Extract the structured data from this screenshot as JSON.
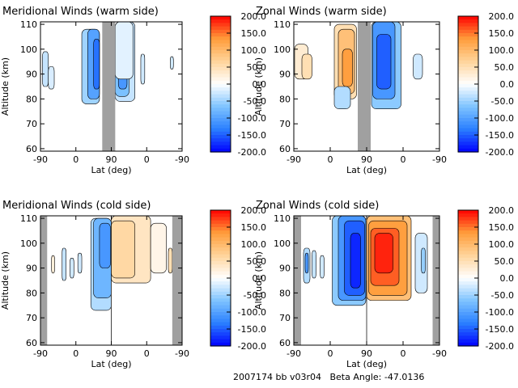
{
  "footer": {
    "run_label": "2007174 bb v03r04",
    "beta_label": "Beta Angle:",
    "beta_value": "-47.0136"
  },
  "colorbar": {
    "ticks": [
      "200.0",
      "150.0",
      "100.0",
      "50.0",
      "0.0",
      "-50.0",
      "-100.0",
      "-150.0",
      "-200.0"
    ],
    "range": [
      -200,
      200
    ],
    "colors": [
      "#0000ff",
      "#2a7fff",
      "#7fc4ff",
      "#ffffff",
      "#ffd49a",
      "#ff9c3a",
      "#ff0000"
    ]
  },
  "chart_data": [
    {
      "type": "heatmap",
      "title": "Meridional Winds (warm side)",
      "xlabel": "Lat (deg)",
      "ylabel": "Altitude (km)",
      "x_ticks": [
        "-90",
        "0",
        "90",
        "0",
        "-90"
      ],
      "y_ticks": [
        "60",
        "70",
        "80",
        "90",
        "100",
        "110"
      ],
      "ylim": [
        59,
        111
      ],
      "x_span": [
        -90,
        270
      ],
      "no_data_band": [
        67,
        100
      ],
      "regions": [
        {
          "x": [
            -85,
            -70
          ],
          "y": [
            85,
            99
          ],
          "value": -30
        },
        {
          "x": [
            -70,
            -55
          ],
          "y": [
            84,
            93
          ],
          "value": -20
        },
        {
          "x": [
            15,
            60
          ],
          "y": [
            78,
            108
          ],
          "value": -50
        },
        {
          "x": [
            30,
            60
          ],
          "y": [
            80,
            108
          ],
          "value": -100
        },
        {
          "x": [
            45,
            60
          ],
          "y": [
            84,
            104
          ],
          "value": -140
        },
        {
          "x": [
            100,
            150
          ],
          "y": [
            79,
            111
          ],
          "value": -30
        },
        {
          "x": [
            100,
            135
          ],
          "y": [
            81,
            103
          ],
          "value": -70
        },
        {
          "x": [
            108,
            130
          ],
          "y": [
            84,
            98
          ],
          "value": -110
        },
        {
          "x": [
            100,
            145
          ],
          "y": [
            88,
            111
          ],
          "value": -15
        },
        {
          "x": [
            165,
            175
          ],
          "y": [
            86,
            98
          ],
          "value": -25
        },
        {
          "x": [
            240,
            248
          ],
          "y": [
            92,
            97
          ],
          "value": -25
        }
      ]
    },
    {
      "type": "heatmap",
      "title": "Zonal Winds (warm side)",
      "xlabel": "Lat (deg)",
      "ylabel": "Altitude (km)",
      "x_ticks": [
        "-90",
        "0",
        "90",
        "0",
        "-90"
      ],
      "y_ticks": [
        "60",
        "70",
        "80",
        "90",
        "100",
        "110"
      ],
      "ylim": [
        59,
        111
      ],
      "x_span": [
        -90,
        270
      ],
      "no_data_band": [
        68,
        100
      ],
      "regions": [
        {
          "x": [
            -88,
            -55
          ],
          "y": [
            88,
            102
          ],
          "value": 30
        },
        {
          "x": [
            -70,
            -45
          ],
          "y": [
            88,
            98
          ],
          "value": 50
        },
        {
          "x": [
            10,
            65
          ],
          "y": [
            80,
            110
          ],
          "value": 50
        },
        {
          "x": [
            20,
            60
          ],
          "y": [
            82,
            108
          ],
          "value": 90
        },
        {
          "x": [
            30,
            55
          ],
          "y": [
            85,
            100
          ],
          "value": 130
        },
        {
          "x": [
            10,
            50
          ],
          "y": [
            76,
            85
          ],
          "value": -40
        },
        {
          "x": [
            102,
            175
          ],
          "y": [
            76,
            111
          ],
          "value": -60
        },
        {
          "x": [
            105,
            160
          ],
          "y": [
            80,
            111
          ],
          "value": -110
        },
        {
          "x": [
            115,
            150
          ],
          "y": [
            84,
            106
          ],
          "value": -150
        },
        {
          "x": [
            205,
            228
          ],
          "y": [
            88,
            98
          ],
          "value": -25
        }
      ]
    },
    {
      "type": "heatmap",
      "title": "Meridional Winds (cold side)",
      "xlabel": "Lat (deg)",
      "ylabel": "Altitude (km)",
      "x_ticks": [
        "-90",
        "0",
        "90",
        "0",
        "-90"
      ],
      "y_ticks": [
        "60",
        "70",
        "80",
        "90",
        "100",
        "110"
      ],
      "ylim": [
        59,
        111
      ],
      "x_span": [
        -90,
        270
      ],
      "no_data_bands": [
        [
          -90,
          -73
        ],
        [
          245,
          270
        ]
      ],
      "regions": [
        {
          "x": [
            -62,
            -54
          ],
          "y": [
            88,
            95
          ],
          "value": 25
        },
        {
          "x": [
            -35,
            -25
          ],
          "y": [
            85,
            98
          ],
          "value": -30
        },
        {
          "x": [
            -15,
            -5
          ],
          "y": [
            86,
            94
          ],
          "value": -25
        },
        {
          "x": [
            5,
            15
          ],
          "y": [
            88,
            96
          ],
          "value": -25
        },
        {
          "x": [
            38,
            90
          ],
          "y": [
            73,
            110
          ],
          "value": -40
        },
        {
          "x": [
            45,
            90
          ],
          "y": [
            78,
            110
          ],
          "value": -80
        },
        {
          "x": [
            60,
            88
          ],
          "y": [
            90,
            108
          ],
          "value": -110
        },
        {
          "x": [
            90,
            190
          ],
          "y": [
            84,
            111
          ],
          "value": 40
        },
        {
          "x": [
            90,
            150
          ],
          "y": [
            86,
            109
          ],
          "value": 60
        },
        {
          "x": [
            190,
            230
          ],
          "y": [
            88,
            108
          ],
          "value": 15
        },
        {
          "x": [
            235,
            245
          ],
          "y": [
            88,
            98
          ],
          "value": 50
        }
      ]
    },
    {
      "type": "heatmap",
      "title": "Zonal Winds (cold side)",
      "xlabel": "Lat (deg)",
      "ylabel": "Altitude (km)",
      "x_ticks": [
        "-90",
        "0",
        "90",
        "0",
        "-90"
      ],
      "y_ticks": [
        "60",
        "70",
        "80",
        "90",
        "100",
        "110"
      ],
      "ylim": [
        59,
        111
      ],
      "x_span": [
        -90,
        270
      ],
      "no_data_bands": [
        [
          -90,
          -72
        ],
        [
          253,
          270
        ]
      ],
      "regions": [
        {
          "x": [
            -66,
            -50
          ],
          "y": [
            84,
            98
          ],
          "value": -40
        },
        {
          "x": [
            -62,
            -54
          ],
          "y": [
            88,
            96
          ],
          "value": -110
        },
        {
          "x": [
            -45,
            -35
          ],
          "y": [
            86,
            97
          ],
          "value": -30
        },
        {
          "x": [
            -25,
            -15
          ],
          "y": [
            86,
            95
          ],
          "value": -25
        },
        {
          "x": [
            5,
            88
          ],
          "y": [
            75,
            111
          ],
          "value": -60
        },
        {
          "x": [
            20,
            88
          ],
          "y": [
            77,
            111
          ],
          "value": -110
        },
        {
          "x": [
            35,
            85
          ],
          "y": [
            79,
            109
          ],
          "value": -150
        },
        {
          "x": [
            50,
            75
          ],
          "y": [
            82,
            104
          ],
          "value": -180
        },
        {
          "x": [
            90,
            200
          ],
          "y": [
            77,
            111
          ],
          "value": 90
        },
        {
          "x": [
            95,
            190
          ],
          "y": [
            79,
            109
          ],
          "value": 130
        },
        {
          "x": [
            100,
            170
          ],
          "y": [
            83,
            106
          ],
          "value": 160
        },
        {
          "x": [
            110,
            155
          ],
          "y": [
            88,
            104
          ],
          "value": 185
        },
        {
          "x": [
            210,
            240
          ],
          "y": [
            80,
            104
          ],
          "value": -25
        },
        {
          "x": [
            225,
            235
          ],
          "y": [
            88,
            98
          ],
          "value": -55
        }
      ]
    }
  ]
}
